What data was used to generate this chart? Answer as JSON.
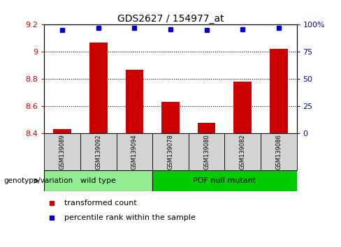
{
  "title": "GDS2627 / 154977_at",
  "samples": [
    "GSM139089",
    "GSM139092",
    "GSM139094",
    "GSM139078",
    "GSM139080",
    "GSM139082",
    "GSM139086"
  ],
  "transformed_counts": [
    8.43,
    9.07,
    8.87,
    8.63,
    8.48,
    8.78,
    9.02
  ],
  "percentile_ranks": [
    95,
    97,
    97,
    96,
    95,
    96,
    97
  ],
  "ylim_left": [
    8.4,
    9.2
  ],
  "ylim_right": [
    0,
    100
  ],
  "bar_color": "#cc0000",
  "dot_color": "#0000cc",
  "bar_bottom": 8.4,
  "yticks_left": [
    8.4,
    8.6,
    8.8,
    9.0,
    9.2
  ],
  "yticks_right": [
    0,
    25,
    50,
    75,
    100
  ],
  "ytick_labels_left": [
    "8.4",
    "8.6",
    "8.8",
    "9",
    "9.2"
  ],
  "ytick_labels_right": [
    "0",
    "25",
    "50",
    "75",
    "100%"
  ],
  "hlines": [
    9.0,
    8.8,
    8.6
  ],
  "wild_type_indices": [
    0,
    1,
    2
  ],
  "pof_null_indices": [
    3,
    4,
    5,
    6
  ],
  "wild_type_label": "wild type",
  "pof_null_label": "POF null mutant",
  "genotype_label": "genotype/variation",
  "legend_red_label": "transformed count",
  "legend_blue_label": "percentile rank within the sample",
  "wild_type_color": "#90ee90",
  "pof_null_color": "#00cc00",
  "sample_box_color": "#d3d3d3",
  "background_color": "#ffffff",
  "bar_width": 0.5
}
